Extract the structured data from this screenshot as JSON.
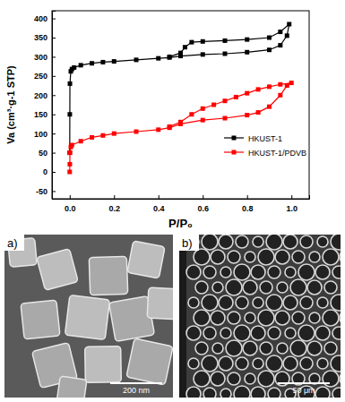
{
  "chart_data": {
    "type": "line",
    "x_label": "P/P₀",
    "y_label": "Va (cm³·g-1 STP)",
    "xlim": [
      -0.08,
      1.08
    ],
    "ylim": [
      -70,
      420
    ],
    "xticks": [
      {
        "value": 0,
        "label": "0.0"
      },
      {
        "value": 0.2,
        "label": "0.2"
      },
      {
        "value": 0.4,
        "label": "0.4"
      },
      {
        "value": 0.6,
        "label": "0.6"
      },
      {
        "value": 0.8,
        "label": "0.8"
      },
      {
        "value": 1,
        "label": "1.0"
      }
    ],
    "yticks": [
      -50,
      0,
      50,
      100,
      150,
      200,
      250,
      300,
      350,
      400
    ],
    "legend": "right",
    "series": [
      {
        "name": "HKUST-1",
        "color": "#000000",
        "marker": "square",
        "line_style": "solid",
        "x": [
          0.0001,
          0.0005,
          0.001,
          0.005,
          0.01,
          0.02,
          0.05,
          0.1,
          0.15,
          0.2,
          0.3,
          0.4,
          0.45,
          0.5,
          0.6,
          0.7,
          0.8,
          0.9,
          0.95,
          0.98,
          0.99,
          0.95,
          0.9,
          0.8,
          0.7,
          0.6,
          0.55,
          0.52,
          0.5,
          0.45
        ],
        "values": [
          50,
          150,
          230,
          262,
          268,
          272,
          278,
          283,
          286,
          288,
          292,
          296,
          298,
          302,
          306,
          308,
          312,
          318,
          330,
          355,
          385,
          365,
          350,
          345,
          342,
          340,
          338,
          325,
          310,
          300
        ]
      },
      {
        "name": "HKUST-1/PDVB",
        "color": "#ff0000",
        "marker": "square",
        "line_style": "solid",
        "x": [
          0,
          0.0005,
          0.001,
          0.005,
          0.01,
          0.05,
          0.1,
          0.15,
          0.2,
          0.3,
          0.4,
          0.45,
          0.5,
          0.6,
          0.7,
          0.8,
          0.85,
          0.9,
          0.95,
          0.98,
          1.0,
          0.95,
          0.9,
          0.85,
          0.8,
          0.75,
          0.7,
          0.65,
          0.6,
          0.55,
          0.5,
          0.45
        ],
        "values": [
          0,
          20,
          50,
          65,
          70,
          80,
          90,
          95,
          100,
          105,
          110,
          115,
          125,
          135,
          140,
          148,
          155,
          170,
          200,
          225,
          232,
          228,
          222,
          215,
          205,
          195,
          185,
          175,
          165,
          150,
          130,
          118
        ]
      }
    ]
  },
  "images": [
    {
      "label": "a)",
      "scale_bar": "200 nm"
    },
    {
      "label": "b)",
      "scale_bar": "50 μm"
    }
  ]
}
